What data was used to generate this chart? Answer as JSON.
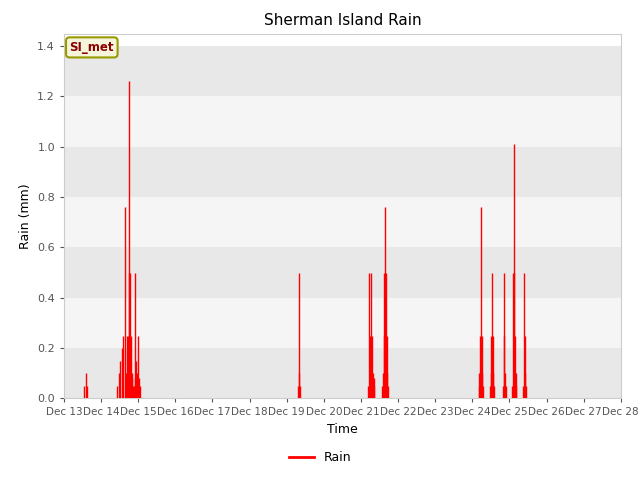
{
  "title": "Sherman Island Rain",
  "xlabel": "Time",
  "ylabel": "Rain (mm)",
  "legend_label": "Rain",
  "legend_box_label": "SI_met",
  "line_color": "#ff0000",
  "ylim": [
    0,
    1.45
  ],
  "yticks": [
    0.0,
    0.2,
    0.4,
    0.6,
    0.8,
    1.0,
    1.2,
    1.4
  ],
  "bg_color": "#ffffff",
  "plot_bg_color": "#ffffff",
  "band_colors": [
    "#e8e8e8",
    "#f5f5f5"
  ],
  "rain_data": [
    [
      13.5,
      0.0
    ],
    [
      13.54,
      0.05
    ],
    [
      13.58,
      0.1
    ],
    [
      13.62,
      0.05
    ],
    [
      13.66,
      0.0
    ],
    [
      14.38,
      0.0
    ],
    [
      14.42,
      0.05
    ],
    [
      14.48,
      0.1
    ],
    [
      14.52,
      0.15
    ],
    [
      14.56,
      0.2
    ],
    [
      14.6,
      0.25
    ],
    [
      14.64,
      0.76
    ],
    [
      14.66,
      0.1
    ],
    [
      14.68,
      0.08
    ],
    [
      14.7,
      0.25
    ],
    [
      14.72,
      0.25
    ],
    [
      14.74,
      0.5
    ],
    [
      14.76,
      1.26
    ],
    [
      14.78,
      0.5
    ],
    [
      14.8,
      0.25
    ],
    [
      14.82,
      0.1
    ],
    [
      14.84,
      0.08
    ],
    [
      14.86,
      0.05
    ],
    [
      14.88,
      0.05
    ],
    [
      14.9,
      0.08
    ],
    [
      14.92,
      0.5
    ],
    [
      14.94,
      0.15
    ],
    [
      14.96,
      0.1
    ],
    [
      14.98,
      0.08
    ],
    [
      15.0,
      0.25
    ],
    [
      15.02,
      0.08
    ],
    [
      15.04,
      0.05
    ],
    [
      15.2,
      0.0
    ],
    [
      19.28,
      0.0
    ],
    [
      19.3,
      0.05
    ],
    [
      19.32,
      0.5
    ],
    [
      19.34,
      0.1
    ],
    [
      19.36,
      0.05
    ],
    [
      19.4,
      0.0
    ],
    [
      21.18,
      0.0
    ],
    [
      21.2,
      0.05
    ],
    [
      21.22,
      0.5
    ],
    [
      21.24,
      0.25
    ],
    [
      21.26,
      0.5
    ],
    [
      21.28,
      0.25
    ],
    [
      21.3,
      0.25
    ],
    [
      21.32,
      0.1
    ],
    [
      21.34,
      0.08
    ],
    [
      21.36,
      0.05
    ],
    [
      21.55,
      0.0
    ],
    [
      21.57,
      0.05
    ],
    [
      21.59,
      0.1
    ],
    [
      21.61,
      0.25
    ],
    [
      21.63,
      0.5
    ],
    [
      21.65,
      0.76
    ],
    [
      21.67,
      0.5
    ],
    [
      21.69,
      0.25
    ],
    [
      21.71,
      0.1
    ],
    [
      21.73,
      0.05
    ],
    [
      22.1,
      0.0
    ],
    [
      24.15,
      0.0
    ],
    [
      24.17,
      0.05
    ],
    [
      24.19,
      0.1
    ],
    [
      24.21,
      0.25
    ],
    [
      24.23,
      0.76
    ],
    [
      24.25,
      0.25
    ],
    [
      24.27,
      0.1
    ],
    [
      24.29,
      0.05
    ],
    [
      24.45,
      0.0
    ],
    [
      24.47,
      0.05
    ],
    [
      24.49,
      0.1
    ],
    [
      24.51,
      0.25
    ],
    [
      24.53,
      0.5
    ],
    [
      24.55,
      0.25
    ],
    [
      24.57,
      0.1
    ],
    [
      24.59,
      0.05
    ],
    [
      24.8,
      0.0
    ],
    [
      24.82,
      0.05
    ],
    [
      24.84,
      0.5
    ],
    [
      24.86,
      0.25
    ],
    [
      24.88,
      0.1
    ],
    [
      24.9,
      0.05
    ],
    [
      25.05,
      0.0
    ],
    [
      25.07,
      0.05
    ],
    [
      25.09,
      0.5
    ],
    [
      25.11,
      1.01
    ],
    [
      25.13,
      0.5
    ],
    [
      25.15,
      0.25
    ],
    [
      25.17,
      0.1
    ],
    [
      25.19,
      0.05
    ],
    [
      25.35,
      0.0
    ],
    [
      25.37,
      0.05
    ],
    [
      25.39,
      0.5
    ],
    [
      25.41,
      0.25
    ],
    [
      25.43,
      0.1
    ],
    [
      25.45,
      0.05
    ],
    [
      27.95,
      0.0
    ],
    [
      28.0,
      0.0
    ]
  ]
}
